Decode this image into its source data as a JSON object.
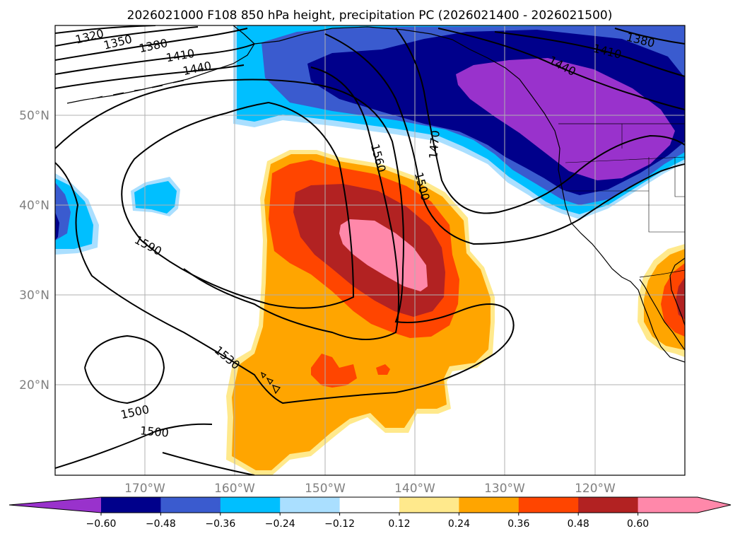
{
  "title": "2026021000 F108 850 hPa height, precipitation PC (2026021400 - 2026021500)",
  "map": {
    "lat_labels": [
      "50°N",
      "40°N",
      "30°N",
      "20°N"
    ],
    "lon_labels": [
      "170°W",
      "160°W",
      "150°W",
      "140°W",
      "130°W",
      "120°W"
    ],
    "contour_labels": [
      "1320",
      "1350",
      "1380",
      "1410",
      "1440",
      "1380",
      "1410",
      "1440",
      "1470",
      "1500",
      "1560",
      "1590",
      "1530",
      "1500",
      "1500"
    ]
  },
  "colorbar": {
    "ticks": [
      "−0.60",
      "−0.48",
      "−0.36",
      "−0.24",
      "−0.12",
      "0.12",
      "0.24",
      "0.36",
      "0.48",
      "0.60"
    ],
    "colors": [
      "#9932cc",
      "#00008b",
      "#3a5bcf",
      "#00bfff",
      "#aadfff",
      "#ffffff",
      "#ffe98c",
      "#ffa500",
      "#ff4500",
      "#b22222",
      "#ff88aa",
      "#ff88aa"
    ]
  },
  "palette": {
    "purple": "#9932cc",
    "navy": "#00008b",
    "royal": "#3a5bcf",
    "sky": "#00bfff",
    "pale": "#aadfff",
    "yellow": "#ffe98c",
    "orange": "#ffa500",
    "red": "#ff4500",
    "brick": "#b22222",
    "pink": "#ff88aa"
  }
}
